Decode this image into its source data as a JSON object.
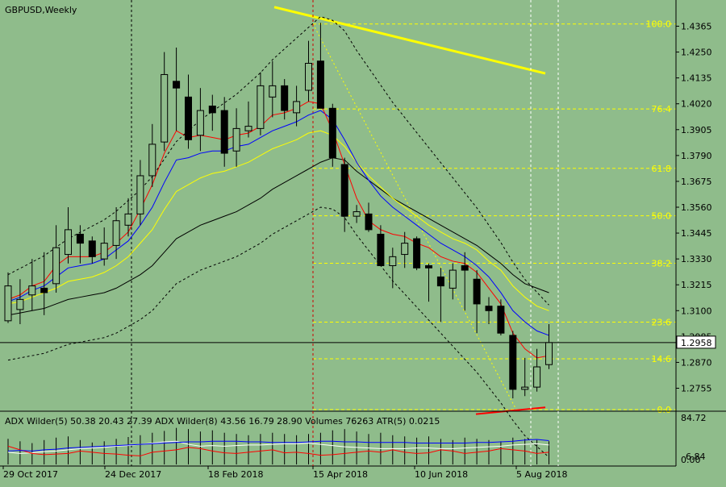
{
  "header": {
    "symbol": "GBPUSD,Weekly"
  },
  "colors": {
    "background": "#8fbc8b",
    "fib": "#ffff00",
    "ma_fast": "#ff0000",
    "ma_mid": "#0000ff",
    "ma_slow": "#ffff00",
    "ma_long": "#000000",
    "envelope": "#000000",
    "trend": "#ffff00",
    "adx_main": "#0000ff",
    "adx_plus": "#ffffff",
    "adx_minus": "#ff0000",
    "volume": "#000000"
  },
  "chart_data": {
    "type": "candlestick",
    "price_ticks": [
      "1.4365",
      "1.4250",
      "1.4135",
      "1.4020",
      "1.3905",
      "1.3790",
      "1.3675",
      "1.3560",
      "1.3445",
      "1.3330",
      "1.3215",
      "1.3100",
      "1.2985",
      "1.2870",
      "1.2755"
    ],
    "y_range": [
      1.266,
      1.446
    ],
    "last_price": "1.2958",
    "last_price_value": 1.2958,
    "date_labels": [
      "29 Oct 2017",
      "24 Dec 2017",
      "18 Feb 2018",
      "15 Apr 2018",
      "10 Jun 2018",
      "5 Aug 2018"
    ],
    "fibonacci": [
      {
        "label": "100.0",
        "value": 1.4375
      },
      {
        "label": "76.4",
        "value": 1.3997
      },
      {
        "label": "61.8",
        "value": 1.3733
      },
      {
        "label": "50.0",
        "value": 1.3522
      },
      {
        "label": "38.2",
        "value": 1.3311
      },
      {
        "label": "23.6",
        "value": 1.3049
      },
      {
        "label": "14.6",
        "value": 1.2886
      },
      {
        "label": "0.0",
        "value": 1.266
      }
    ],
    "candles": [
      {
        "o": 1.3055,
        "h": 1.327,
        "l": 1.3045,
        "c": 1.321
      },
      {
        "o": 1.3105,
        "h": 1.324,
        "l": 1.304,
        "c": 1.315
      },
      {
        "o": 1.317,
        "h": 1.333,
        "l": 1.31,
        "c": 1.321
      },
      {
        "o": 1.32,
        "h": 1.336,
        "l": 1.308,
        "c": 1.318
      },
      {
        "o": 1.322,
        "h": 1.348,
        "l": 1.318,
        "c": 1.338
      },
      {
        "o": 1.335,
        "h": 1.356,
        "l": 1.331,
        "c": 1.346
      },
      {
        "o": 1.344,
        "h": 1.348,
        "l": 1.331,
        "c": 1.34
      },
      {
        "o": 1.341,
        "h": 1.343,
        "l": 1.331,
        "c": 1.334
      },
      {
        "o": 1.333,
        "h": 1.347,
        "l": 1.33,
        "c": 1.34
      },
      {
        "o": 1.339,
        "h": 1.356,
        "l": 1.333,
        "c": 1.35
      },
      {
        "o": 1.348,
        "h": 1.36,
        "l": 1.343,
        "c": 1.353
      },
      {
        "o": 1.353,
        "h": 1.377,
        "l": 1.348,
        "c": 1.37
      },
      {
        "o": 1.37,
        "h": 1.393,
        "l": 1.365,
        "c": 1.384
      },
      {
        "o": 1.385,
        "h": 1.425,
        "l": 1.381,
        "c": 1.415
      },
      {
        "o": 1.412,
        "h": 1.427,
        "l": 1.39,
        "c": 1.409
      },
      {
        "o": 1.405,
        "h": 1.415,
        "l": 1.382,
        "c": 1.386
      },
      {
        "o": 1.388,
        "h": 1.409,
        "l": 1.381,
        "c": 1.399
      },
      {
        "o": 1.401,
        "h": 1.406,
        "l": 1.39,
        "c": 1.398
      },
      {
        "o": 1.399,
        "h": 1.405,
        "l": 1.374,
        "c": 1.38
      },
      {
        "o": 1.381,
        "h": 1.4,
        "l": 1.374,
        "c": 1.391
      },
      {
        "o": 1.39,
        "h": 1.403,
        "l": 1.387,
        "c": 1.392
      },
      {
        "o": 1.391,
        "h": 1.416,
        "l": 1.388,
        "c": 1.41
      },
      {
        "o": 1.405,
        "h": 1.421,
        "l": 1.396,
        "c": 1.41
      },
      {
        "o": 1.41,
        "h": 1.413,
        "l": 1.395,
        "c": 1.399
      },
      {
        "o": 1.398,
        "h": 1.41,
        "l": 1.392,
        "c": 1.403
      },
      {
        "o": 1.408,
        "h": 1.43,
        "l": 1.403,
        "c": 1.42
      },
      {
        "o": 1.421,
        "h": 1.438,
        "l": 1.4,
        "c": 1.4
      },
      {
        "o": 1.4,
        "h": 1.402,
        "l": 1.374,
        "c": 1.378
      },
      {
        "o": 1.375,
        "h": 1.378,
        "l": 1.345,
        "c": 1.352
      },
      {
        "o": 1.352,
        "h": 1.357,
        "l": 1.349,
        "c": 1.354
      },
      {
        "o": 1.353,
        "h": 1.358,
        "l": 1.345,
        "c": 1.346
      },
      {
        "o": 1.344,
        "h": 1.348,
        "l": 1.33,
        "c": 1.33
      },
      {
        "o": 1.33,
        "h": 1.338,
        "l": 1.32,
        "c": 1.334
      },
      {
        "o": 1.335,
        "h": 1.345,
        "l": 1.329,
        "c": 1.34
      },
      {
        "o": 1.342,
        "h": 1.343,
        "l": 1.328,
        "c": 1.329
      },
      {
        "o": 1.33,
        "h": 1.331,
        "l": 1.314,
        "c": 1.329
      },
      {
        "o": 1.325,
        "h": 1.329,
        "l": 1.305,
        "c": 1.321
      },
      {
        "o": 1.32,
        "h": 1.331,
        "l": 1.315,
        "c": 1.328
      },
      {
        "o": 1.33,
        "h": 1.336,
        "l": 1.31,
        "c": 1.328
      },
      {
        "o": 1.324,
        "h": 1.328,
        "l": 1.3,
        "c": 1.313
      },
      {
        "o": 1.312,
        "h": 1.316,
        "l": 1.304,
        "c": 1.31
      },
      {
        "o": 1.312,
        "h": 1.315,
        "l": 1.299,
        "c": 1.3
      },
      {
        "o": 1.299,
        "h": 1.301,
        "l": 1.271,
        "c": 1.275
      },
      {
        "o": 1.275,
        "h": 1.289,
        "l": 1.272,
        "c": 1.276
      },
      {
        "o": 1.276,
        "h": 1.293,
        "l": 1.274,
        "c": 1.285
      },
      {
        "o": 1.286,
        "h": 1.304,
        "l": 1.284,
        "c": 1.2958
      }
    ],
    "ma_red": [
      1.315,
      1.317,
      1.321,
      1.323,
      1.33,
      1.334,
      1.334,
      1.334,
      1.336,
      1.34,
      1.345,
      1.355,
      1.366,
      1.38,
      1.39,
      1.387,
      1.388,
      1.387,
      1.386,
      1.388,
      1.389,
      1.392,
      1.397,
      1.398,
      1.4,
      1.403,
      1.402,
      1.39,
      1.375,
      1.36,
      1.35,
      1.346,
      1.344,
      1.343,
      1.34,
      1.338,
      1.334,
      1.332,
      1.331,
      1.327,
      1.32,
      1.313,
      1.3,
      1.293,
      1.289,
      1.29
    ],
    "ma_blue": [
      1.314,
      1.316,
      1.319,
      1.321,
      1.325,
      1.329,
      1.33,
      1.331,
      1.333,
      1.337,
      1.341,
      1.348,
      1.356,
      1.367,
      1.377,
      1.378,
      1.38,
      1.381,
      1.381,
      1.383,
      1.384,
      1.387,
      1.39,
      1.392,
      1.394,
      1.397,
      1.399,
      1.395,
      1.386,
      1.376,
      1.368,
      1.361,
      1.356,
      1.352,
      1.348,
      1.344,
      1.34,
      1.337,
      1.334,
      1.33,
      1.325,
      1.318,
      1.31,
      1.305,
      1.301,
      1.299
    ],
    "ma_yellow": [
      1.313,
      1.314,
      1.316,
      1.318,
      1.32,
      1.323,
      1.324,
      1.325,
      1.327,
      1.33,
      1.334,
      1.34,
      1.346,
      1.355,
      1.363,
      1.366,
      1.369,
      1.371,
      1.372,
      1.374,
      1.376,
      1.379,
      1.382,
      1.384,
      1.386,
      1.389,
      1.39,
      1.388,
      1.383,
      1.376,
      1.37,
      1.365,
      1.36,
      1.356,
      1.352,
      1.348,
      1.345,
      1.342,
      1.34,
      1.337,
      1.332,
      1.328,
      1.321,
      1.316,
      1.312,
      1.31
    ],
    "ma_black": [
      1.308,
      1.309,
      1.31,
      1.311,
      1.313,
      1.315,
      1.316,
      1.317,
      1.318,
      1.32,
      1.323,
      1.326,
      1.33,
      1.336,
      1.342,
      1.345,
      1.348,
      1.35,
      1.352,
      1.354,
      1.357,
      1.36,
      1.364,
      1.367,
      1.37,
      1.373,
      1.376,
      1.378,
      1.377,
      1.372,
      1.368,
      1.364,
      1.36,
      1.357,
      1.354,
      1.351,
      1.348,
      1.345,
      1.342,
      1.339,
      1.335,
      1.331,
      1.326,
      1.322,
      1.32,
      1.318
    ],
    "adx_panel": {
      "label": "ADX Wilder(5) 50.38 20.43 27.39 ADX Wilder(8) 43.56 16.79 28.90 Volumes 76263 ATR(5) 0.0215",
      "scale_max": "84.72",
      "scale_min": "0.00",
      "scale_min2": "6.84",
      "range": [
        0,
        84.72
      ],
      "adx_blue": [
        22,
        23,
        22,
        24,
        25,
        27,
        28,
        29,
        30,
        31,
        32,
        33,
        34,
        35,
        36,
        37,
        37,
        38,
        38,
        38,
        37,
        37,
        36,
        36,
        36,
        37,
        38,
        38,
        37,
        37,
        36,
        36,
        36,
        36,
        35,
        35,
        35,
        35,
        35,
        36,
        36,
        37,
        38,
        40,
        41,
        39
      ],
      "di_plus": [
        20,
        18,
        19,
        21,
        22,
        24,
        26,
        27,
        28,
        30,
        31,
        33,
        35,
        37,
        38,
        33,
        30,
        31,
        30,
        31,
        32,
        32,
        33,
        34,
        34,
        35,
        33,
        31,
        29,
        28,
        27,
        26,
        26,
        26,
        27,
        27,
        26,
        26,
        27,
        28,
        29,
        30,
        32,
        33,
        34,
        32
      ],
      "di_minus": [
        30,
        24,
        18,
        16,
        17,
        18,
        22,
        20,
        18,
        17,
        15,
        14,
        20,
        22,
        24,
        28,
        26,
        22,
        19,
        18,
        20,
        22,
        24,
        19,
        20,
        18,
        15,
        16,
        18,
        20,
        22,
        20,
        24,
        20,
        18,
        19,
        24,
        22,
        18,
        20,
        22,
        26,
        24,
        22,
        18,
        20
      ],
      "volume": [
        42,
        38,
        35,
        40,
        44,
        46,
        40,
        36,
        38,
        42,
        45,
        48,
        52,
        55,
        60,
        58,
        54,
        56,
        52,
        50,
        48,
        50,
        52,
        50,
        48,
        50,
        52,
        56,
        58,
        54,
        50,
        52,
        48,
        46,
        44,
        46,
        42,
        40,
        44,
        42,
        40,
        38,
        44,
        42,
        40,
        38
      ]
    }
  }
}
